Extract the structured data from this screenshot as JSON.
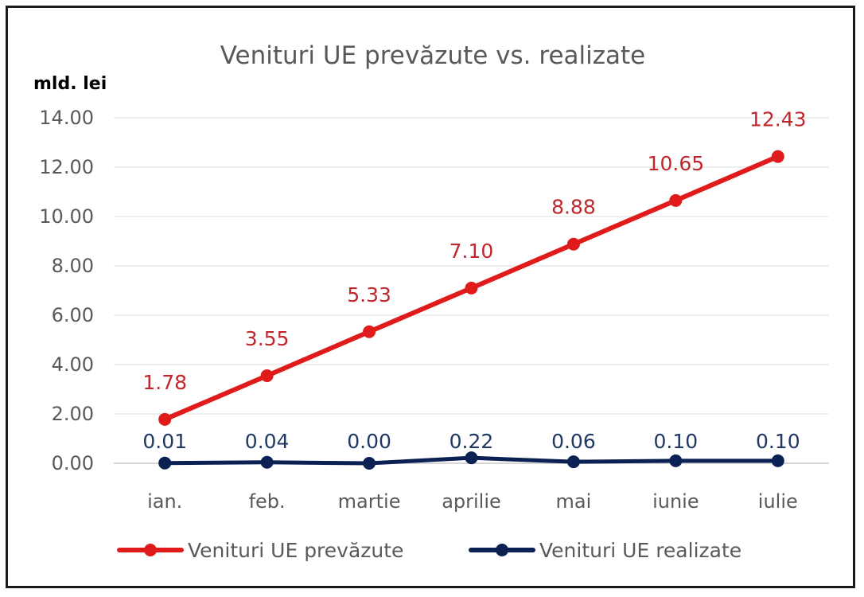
{
  "chart_data": {
    "type": "line",
    "title": "Venituri UE prevăzute vs. realizate",
    "ylabel": "mld. lei",
    "xlabel": "",
    "categories": [
      "ian.",
      "feb.",
      "martie",
      "aprilie",
      "mai",
      "iunie",
      "iulie"
    ],
    "ylim": [
      0,
      14
    ],
    "yticks": [
      0,
      2,
      4,
      6,
      8,
      10,
      12,
      14
    ],
    "ytick_labels": [
      "0.00",
      "2.00",
      "4.00",
      "6.00",
      "8.00",
      "10.00",
      "12.00",
      "14.00"
    ],
    "grid": true,
    "legend_position": "bottom",
    "series": [
      {
        "name": "Venituri UE prevăzute",
        "color": "#e01b1b",
        "label_color": "#c0262c",
        "values": [
          1.78,
          3.55,
          5.33,
          7.1,
          8.88,
          10.65,
          12.43
        ],
        "labels": [
          "1.78",
          "3.55",
          "5.33",
          "7.10",
          "8.88",
          "10.65",
          "12.43"
        ]
      },
      {
        "name": "Venituri UE realizate",
        "color": "#0b2154",
        "label_color": "#1f3864",
        "values": [
          0.01,
          0.04,
          0.0,
          0.22,
          0.06,
          0.1,
          0.1
        ],
        "labels": [
          "0.01",
          "0.04",
          "0.00",
          "0.22",
          "0.06",
          "0.10",
          "0.10"
        ]
      }
    ]
  }
}
